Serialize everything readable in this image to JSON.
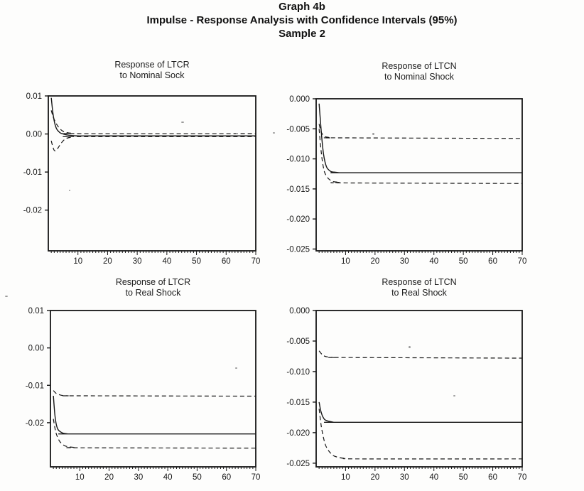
{
  "page": {
    "title_line1": "Graph 4b",
    "title_line2": "Impulse - Response Analysis with Confidence Intervals (95%)",
    "title_line3": "Sample 2"
  },
  "colors": {
    "ink": "#161616",
    "paper": "#fdfdfc"
  },
  "chart_data": [
    {
      "type": "line",
      "title_line1": "Response of LTCR",
      "title_line2": "to Nominal Sock",
      "xlabel": "",
      "ylabel": "",
      "xlim": [
        0,
        70
      ],
      "ylim": [
        -0.0307,
        0.01
      ],
      "xticks": [
        10,
        20,
        30,
        40,
        50,
        60,
        70
      ],
      "x_minor_step": 1,
      "yticks": {
        "values": [
          0.01,
          0,
          -0.01,
          -0.02
        ],
        "labels": [
          "0.01",
          "0.00",
          "-0.01",
          "-0.02"
        ]
      },
      "grid": false,
      "legend": null,
      "series": [
        {
          "name": "point-estimate",
          "style": "solid",
          "x": [
            1,
            1.5,
            2,
            2.5,
            3,
            4,
            5,
            6,
            8,
            10,
            15,
            70
          ],
          "y": [
            0.0095,
            0.0058,
            0.0034,
            0.0019,
            0.0011,
            0.0003,
            0.0,
            -0.0002,
            -0.0004,
            -0.0005,
            -0.0005,
            -0.0005
          ]
        },
        {
          "name": "upper-95-ci",
          "style": "dashed",
          "x": [
            1,
            1.5,
            2,
            3,
            4,
            5,
            6,
            8,
            10,
            70
          ],
          "y": [
            0.0062,
            0.0048,
            0.0038,
            0.0023,
            0.0013,
            0.0007,
            0.0004,
            0.0002,
            0.0001,
            0.0001
          ]
        },
        {
          "name": "lower-95-ci",
          "style": "dashed",
          "x": [
            1,
            1.5,
            2,
            2.5,
            3,
            4,
            5,
            6,
            8,
            10,
            70
          ],
          "y": [
            -0.0018,
            -0.0033,
            -0.0043,
            -0.0044,
            -0.004,
            -0.0028,
            -0.0018,
            -0.0012,
            -0.0008,
            -0.0007,
            -0.0007
          ]
        }
      ]
    },
    {
      "type": "line",
      "title_line1": "Response of LTCN",
      "title_line2": "to Nominal Shock",
      "xlabel": "",
      "ylabel": "",
      "xlim": [
        0,
        70
      ],
      "ylim": [
        -0.0253,
        0
      ],
      "xticks": [
        10,
        20,
        30,
        40,
        50,
        60,
        70
      ],
      "x_minor_step": 1,
      "yticks": {
        "values": [
          0,
          -0.005,
          -0.01,
          -0.015,
          -0.02,
          -0.025
        ],
        "labels": [
          "0.000",
          "-0.005",
          "-0.010",
          "-0.015",
          "-0.020",
          "-0.025"
        ]
      },
      "grid": false,
      "legend": null,
      "series": [
        {
          "name": "point-estimate",
          "style": "solid",
          "x": [
            1,
            1.5,
            2,
            2.5,
            3,
            3.5,
            4,
            5,
            6,
            8,
            10,
            70
          ],
          "y": [
            -0.0008,
            -0.004,
            -0.007,
            -0.0092,
            -0.0105,
            -0.0113,
            -0.0117,
            -0.0121,
            -0.0122,
            -0.0123,
            -0.0123,
            -0.0123
          ]
        },
        {
          "name": "upper-95-ci",
          "style": "dashed",
          "x": [
            1,
            1.5,
            2,
            3,
            4,
            5,
            8,
            70
          ],
          "y": [
            -0.0042,
            -0.0052,
            -0.0058,
            -0.0063,
            -0.0064,
            -0.0065,
            -0.0065,
            -0.0066
          ]
        },
        {
          "name": "lower-95-ci",
          "style": "dashed",
          "x": [
            1,
            1.5,
            2,
            2.5,
            3,
            4,
            5,
            6,
            8,
            10,
            70
          ],
          "y": [
            -0.005,
            -0.0078,
            -0.01,
            -0.0115,
            -0.0124,
            -0.0132,
            -0.0136,
            -0.0138,
            -0.0139,
            -0.014,
            -0.0141
          ]
        }
      ]
    },
    {
      "type": "line",
      "title_line1": "Response of LTCR",
      "title_line2": "to Real Shock",
      "xlabel": "",
      "ylabel": "",
      "xlim": [
        0,
        70
      ],
      "ylim": [
        -0.0318,
        0.01
      ],
      "xticks": [
        10,
        20,
        30,
        40,
        50,
        60,
        70
      ],
      "x_minor_step": 1,
      "yticks": {
        "values": [
          0.01,
          0,
          -0.01,
          -0.02
        ],
        "labels": [
          "0.01",
          "0.00",
          "-0.01",
          "-0.02"
        ]
      },
      "grid": false,
      "legend": null,
      "series": [
        {
          "name": "point-estimate",
          "style": "solid",
          "x": [
            1,
            1.5,
            2,
            2.5,
            3,
            4,
            5,
            6,
            8,
            70
          ],
          "y": [
            -0.0128,
            -0.0178,
            -0.0205,
            -0.0217,
            -0.0222,
            -0.0227,
            -0.0229,
            -0.023,
            -0.023,
            -0.023
          ]
        },
        {
          "name": "upper-95-ci",
          "style": "dashed",
          "x": [
            1,
            2,
            3,
            4,
            6,
            10,
            70
          ],
          "y": [
            -0.0114,
            -0.0122,
            -0.0125,
            -0.0127,
            -0.0128,
            -0.0128,
            -0.0129
          ]
        },
        {
          "name": "lower-95-ci",
          "style": "dashed",
          "x": [
            1,
            1.5,
            2,
            3,
            4,
            5,
            6,
            8,
            10,
            70
          ],
          "y": [
            -0.019,
            -0.0213,
            -0.023,
            -0.0248,
            -0.0257,
            -0.0262,
            -0.0264,
            -0.0266,
            -0.0267,
            -0.0268
          ]
        }
      ]
    },
    {
      "type": "line",
      "title_line1": "Response of LTCN",
      "title_line2": "to Real Shock",
      "xlabel": "",
      "ylabel": "",
      "xlim": [
        0,
        70
      ],
      "ylim": [
        -0.0256,
        0
      ],
      "xticks": [
        10,
        20,
        30,
        40,
        50,
        60,
        70
      ],
      "x_minor_step": 1,
      "yticks": {
        "values": [
          0,
          -0.005,
          -0.01,
          -0.015,
          -0.02,
          -0.025
        ],
        "labels": [
          "0.000",
          "-0.005",
          "-0.010",
          "-0.015",
          "-0.020",
          "-0.025"
        ]
      },
      "grid": false,
      "legend": null,
      "series": [
        {
          "name": "point-estimate",
          "style": "solid",
          "x": [
            1,
            1.5,
            2,
            2.5,
            3,
            4,
            5,
            6,
            8,
            70
          ],
          "y": [
            -0.015,
            -0.0163,
            -0.0171,
            -0.0176,
            -0.0179,
            -0.0181,
            -0.0182,
            -0.0183,
            -0.0183,
            -0.0183
          ]
        },
        {
          "name": "upper-95-ci",
          "style": "dashed",
          "x": [
            1,
            2,
            3,
            4,
            6,
            10,
            70
          ],
          "y": [
            -0.0066,
            -0.0072,
            -0.0075,
            -0.0076,
            -0.0077,
            -0.0077,
            -0.0078
          ]
        },
        {
          "name": "lower-95-ci",
          "style": "dashed",
          "x": [
            1,
            1.5,
            2,
            3,
            4,
            5,
            6,
            8,
            10,
            15,
            70
          ],
          "y": [
            -0.0161,
            -0.0181,
            -0.0197,
            -0.0218,
            -0.0228,
            -0.0234,
            -0.0238,
            -0.0241,
            -0.0242,
            -0.0243,
            -0.0243
          ]
        }
      ]
    }
  ]
}
